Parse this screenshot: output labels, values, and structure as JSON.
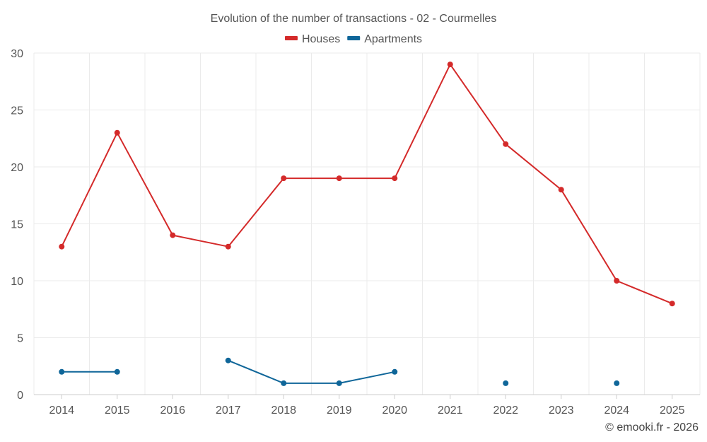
{
  "chart_data": {
    "type": "line",
    "title": "Evolution of the number of transactions - 02 - Courmelles",
    "categories": [
      "2014",
      "2015",
      "2016",
      "2017",
      "2018",
      "2019",
      "2020",
      "2021",
      "2022",
      "2023",
      "2024",
      "2025"
    ],
    "ylim": [
      0,
      30
    ],
    "yticks": [
      0,
      5,
      10,
      15,
      20,
      25,
      30
    ],
    "grid": true,
    "legend_position": "top-center",
    "series": [
      {
        "name": "Houses",
        "color": "#d42a2a",
        "values": [
          13,
          23,
          14,
          13,
          19,
          19,
          19,
          29,
          22,
          18,
          10,
          8
        ]
      },
      {
        "name": "Apartments",
        "color": "#0f6699",
        "values": [
          2,
          2,
          null,
          3,
          1,
          1,
          2,
          null,
          1,
          null,
          1,
          null
        ]
      }
    ]
  },
  "credit": "© emooki.fr - 2026"
}
